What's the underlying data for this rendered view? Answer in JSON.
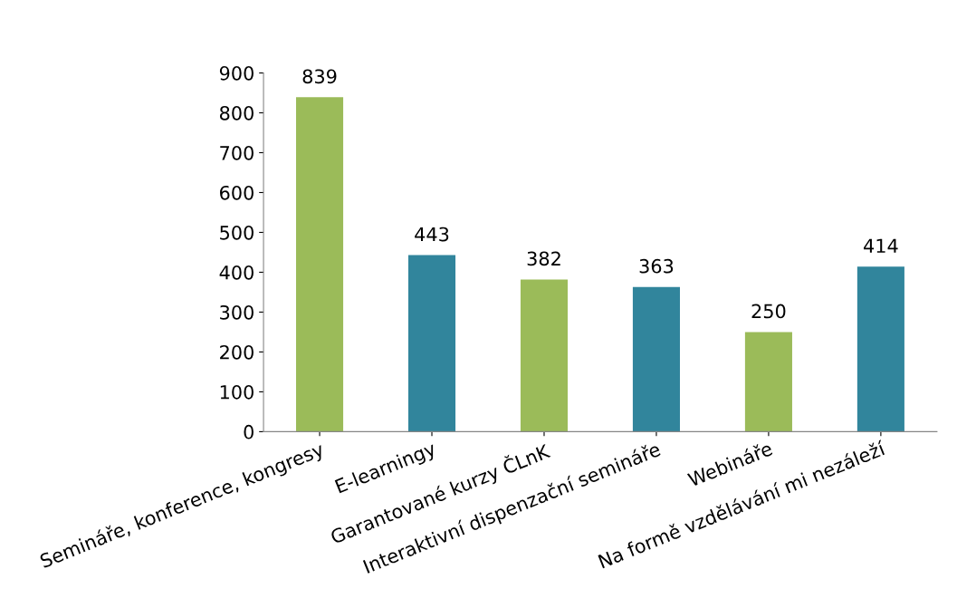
{
  "chart_data": {
    "type": "bar",
    "categories": [
      "Semináře, konference, kongresy",
      "E-learningy",
      "Garantované kurzy ČLnK",
      "Interaktivní dispenzační semináře",
      "Webináře",
      "Na formě vzdělávání mi nezáleží"
    ],
    "values": [
      839,
      443,
      382,
      363,
      250,
      414
    ],
    "colors": [
      "#9bbb59",
      "#31859c",
      "#9bbb59",
      "#31859c",
      "#9bbb59",
      "#31859c"
    ],
    "ylim": [
      0,
      900
    ],
    "yticks": [
      0,
      100,
      200,
      300,
      400,
      500,
      600,
      700,
      800,
      900
    ],
    "data_labels": true,
    "grid": false
  }
}
